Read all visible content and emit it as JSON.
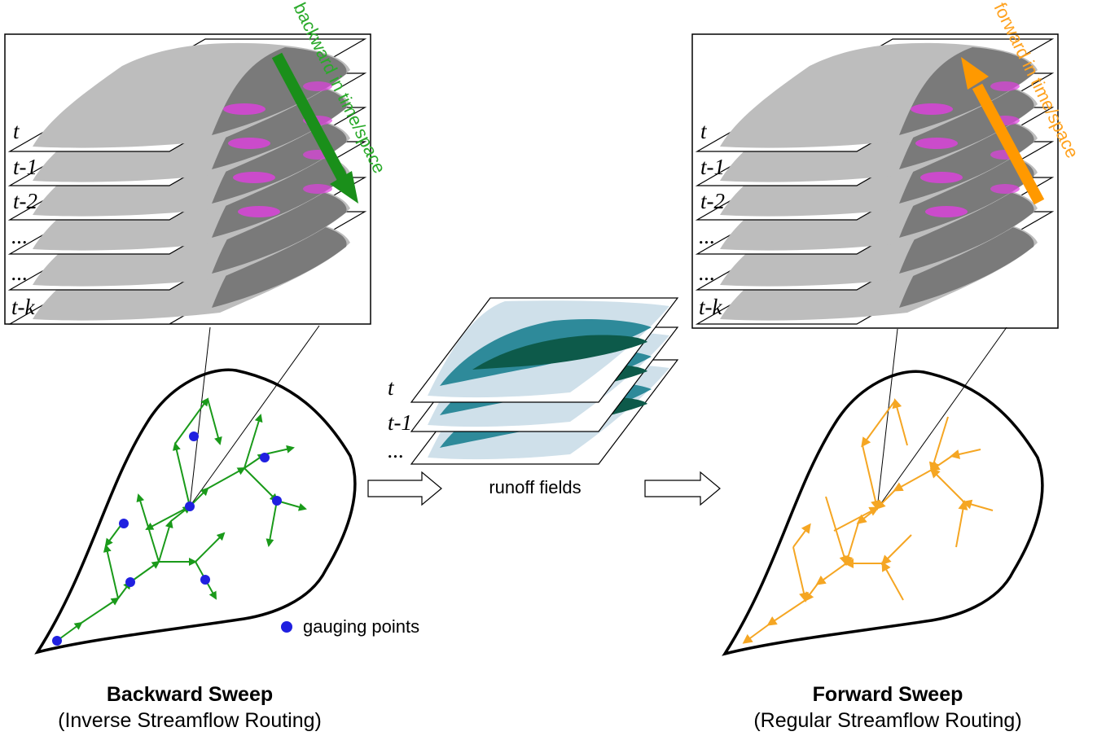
{
  "left_panel": {
    "time_labels": [
      "t",
      "t-1",
      "t-2",
      "...",
      "...",
      "t-k"
    ],
    "sweep_arrow_label": "backward in time/space",
    "sweep_arrow_color": "#1a8f1a",
    "title": "Backward Sweep",
    "subtitle": "(Inverse Streamflow Routing)"
  },
  "middle_panel": {
    "time_labels": [
      "t",
      "t-1",
      "..."
    ],
    "caption": "runoff fields"
  },
  "right_panel": {
    "time_labels": [
      "t",
      "t-1",
      "t-2",
      "...",
      "...",
      "t-k"
    ],
    "sweep_arrow_label": "forward in time/space",
    "sweep_arrow_color": "#ff9900",
    "title": "Forward Sweep",
    "subtitle": "(Regular Streamflow Routing)"
  },
  "legend": {
    "gauging_points": "gauging points",
    "gauge_color": "#2020e0"
  },
  "colors": {
    "map_gray": "#bdbdbd",
    "river_dark": "#7a7a7a",
    "highlight_magenta": "#e040e0",
    "network_green": "#1a9a1a",
    "network_orange": "#f5a623",
    "runoff_dark": "#0d5a4a",
    "runoff_mid": "#2e8a9a",
    "runoff_light": "#cfe0ea"
  }
}
